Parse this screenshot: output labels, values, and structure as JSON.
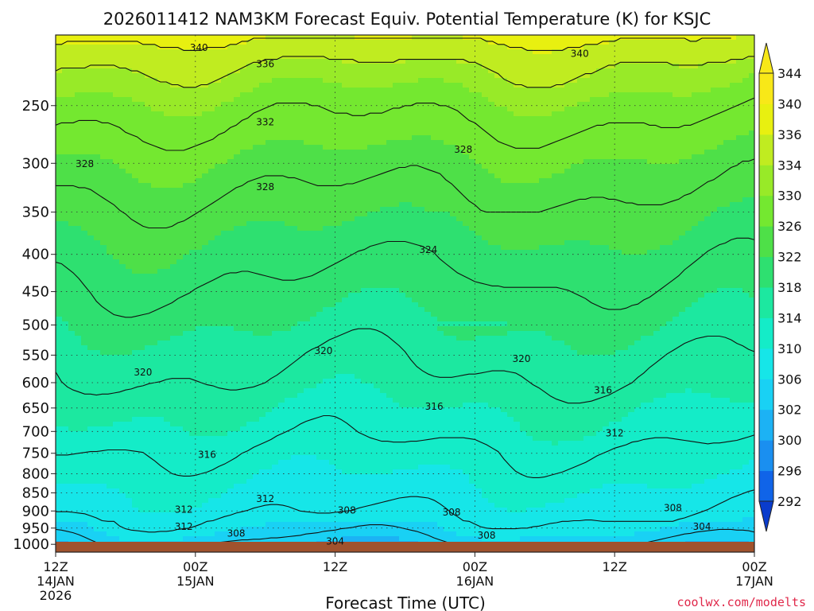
{
  "chart_data": {
    "type": "heatmap",
    "title": "2026011412 NAM3KM Forecast Equiv. Potential Temperature (K) for KSJC",
    "xlabel": "Forecast Time (UTC)",
    "ylabel": "",
    "credit": "coolwx.com/modelts",
    "x_ticks": [
      {
        "hour": 0,
        "line1": "12Z",
        "line2": "14JAN",
        "line3": "2026"
      },
      {
        "hour": 12,
        "line1": "00Z",
        "line2": "15JAN",
        "line3": ""
      },
      {
        "hour": 24,
        "line1": "12Z",
        "line2": "",
        "line3": ""
      },
      {
        "hour": 36,
        "line1": "00Z",
        "line2": "16JAN",
        "line3": ""
      },
      {
        "hour": 48,
        "line1": "12Z",
        "line2": "",
        "line3": ""
      },
      {
        "hour": 60,
        "line1": "00Z",
        "line2": "17JAN",
        "line3": ""
      }
    ],
    "xlim": [
      0,
      60
    ],
    "y_scale": "log-pressure",
    "ylim": [
      1025,
      200
    ],
    "y_ticks": [
      250,
      300,
      350,
      400,
      450,
      500,
      550,
      600,
      650,
      700,
      750,
      800,
      850,
      900,
      950,
      1000
    ],
    "colorbar": {
      "levels": [
        292,
        296,
        300,
        302,
        306,
        310,
        314,
        318,
        322,
        326,
        330,
        334,
        336,
        340,
        344
      ],
      "colors": [
        "#0a3ccc",
        "#1064e8",
        "#1a8ff0",
        "#1cb2f4",
        "#19d1f4",
        "#16e6e8",
        "#14ecc8",
        "#1ce8a0",
        "#2ee070",
        "#4ee048",
        "#74e830",
        "#98ea28",
        "#c0ec20",
        "#e8f010",
        "#f8e818"
      ],
      "extend": "both"
    },
    "contour_labels": [
      {
        "text": "340",
        "hour": 12.3,
        "p": 208
      },
      {
        "text": "340",
        "hour": 45.0,
        "p": 212
      },
      {
        "text": "336",
        "hour": 18.0,
        "p": 219
      },
      {
        "text": "332",
        "hour": 18.0,
        "p": 263
      },
      {
        "text": "328",
        "hour": 2.5,
        "p": 300
      },
      {
        "text": "328",
        "hour": 18.0,
        "p": 323
      },
      {
        "text": "328",
        "hour": 35.0,
        "p": 287
      },
      {
        "text": "324",
        "hour": 32.0,
        "p": 394
      },
      {
        "text": "320",
        "hour": 7.5,
        "p": 580
      },
      {
        "text": "320",
        "hour": 23.0,
        "p": 542
      },
      {
        "text": "320",
        "hour": 40.0,
        "p": 556
      },
      {
        "text": "316",
        "hour": 13.0,
        "p": 752
      },
      {
        "text": "316",
        "hour": 32.5,
        "p": 646
      },
      {
        "text": "316",
        "hour": 47.0,
        "p": 614
      },
      {
        "text": "312",
        "hour": 18.0,
        "p": 865
      },
      {
        "text": "312",
        "hour": 11.0,
        "p": 895
      },
      {
        "text": "312",
        "hour": 11.0,
        "p": 944
      },
      {
        "text": "312",
        "hour": 48.0,
        "p": 703
      },
      {
        "text": "308",
        "hour": 15.5,
        "p": 965
      },
      {
        "text": "308",
        "hour": 25.0,
        "p": 897
      },
      {
        "text": "308",
        "hour": 34.0,
        "p": 903
      },
      {
        "text": "308",
        "hour": 37.0,
        "p": 971
      },
      {
        "text": "308",
        "hour": 53.0,
        "p": 890
      },
      {
        "text": "304",
        "hour": 24.0,
        "p": 990
      },
      {
        "text": "304",
        "hour": 55.5,
        "p": 945
      }
    ],
    "grid": true,
    "ground_color": "#a0522d"
  }
}
